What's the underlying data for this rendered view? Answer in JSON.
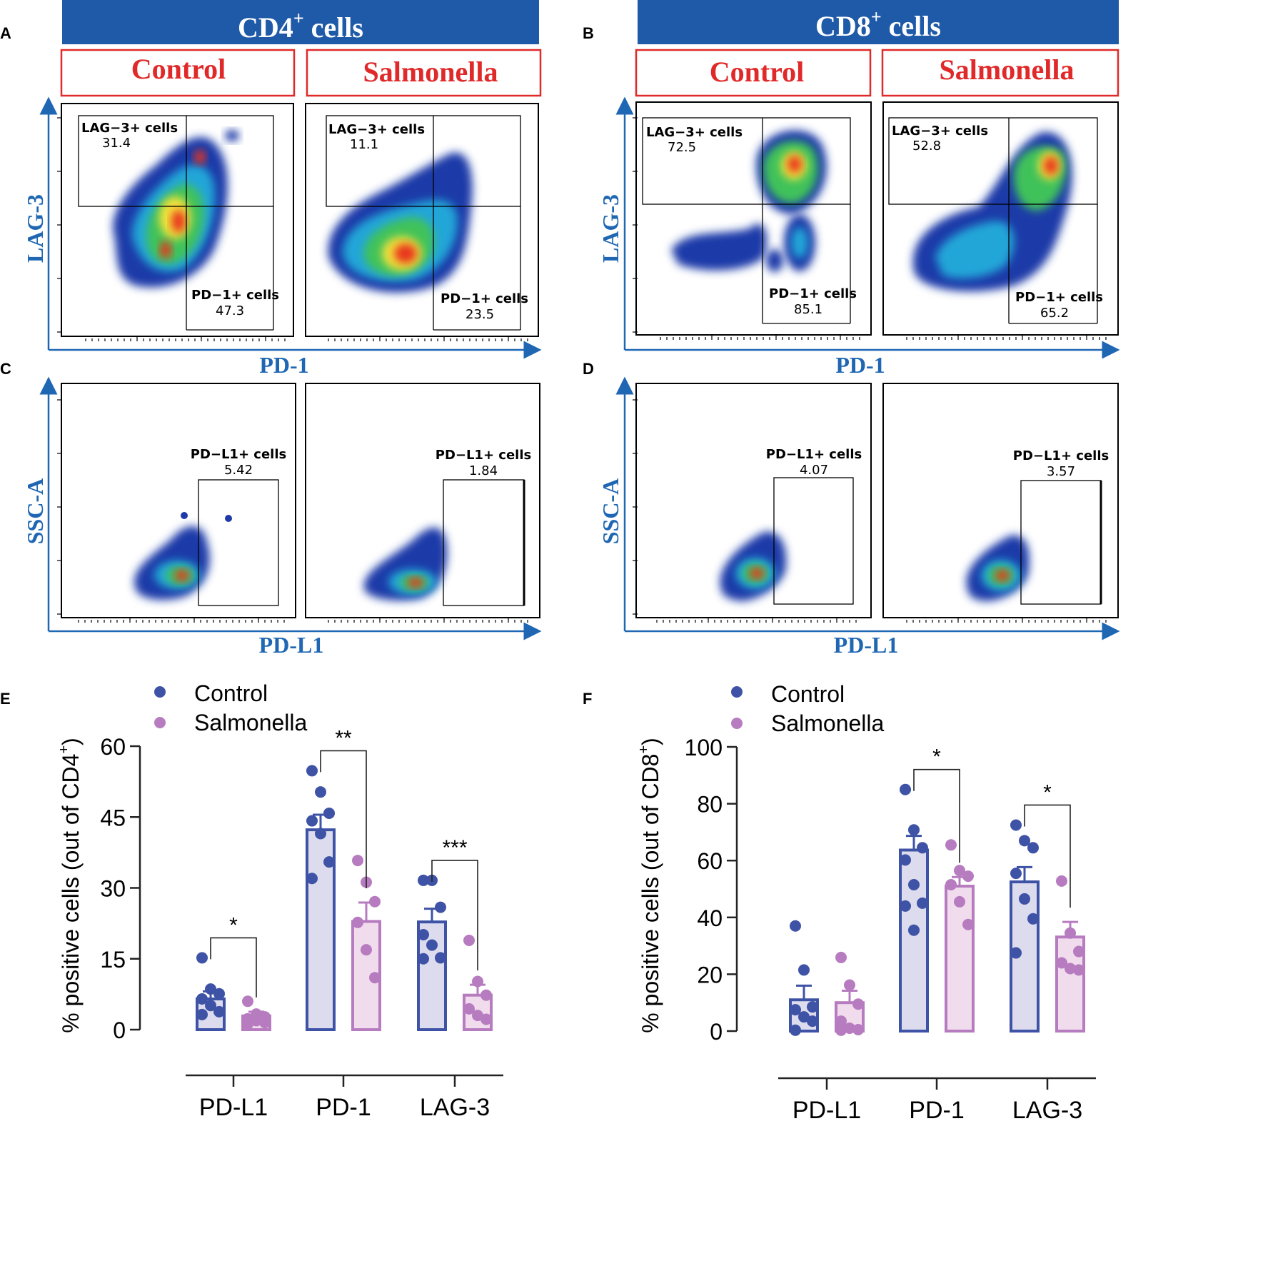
{
  "colors": {
    "banner": "#1f5aa8",
    "control_text": "#e02a2a",
    "axis_blue": "#1f67b3",
    "control_bar": "#3e53a6",
    "control_fill": "#dcdcee",
    "salmonella_bar": "#b77cc0",
    "salmonella_fill": "#f1dcee"
  },
  "panel_letters": {
    "A": "A",
    "B": "B",
    "C": "C",
    "D": "D",
    "E": "E",
    "F": "F"
  },
  "banners": {
    "cd4": {
      "main": "CD4",
      "sup": "+",
      "rest": " cells"
    },
    "cd8": {
      "main": "CD8",
      "sup": "+",
      "rest": " cells"
    }
  },
  "groups": {
    "control": "Control",
    "salmonella": "Salmonella"
  },
  "axes": {
    "lag3": "LAG-3",
    "pd1": "PD-1",
    "ssc": "SSC-A",
    "pdl1": "PD-L1"
  },
  "flow_plots": {
    "A_control": {
      "lag_label": "LAG−3+ cells",
      "lag_val": "31.4",
      "pd_label": "PD−1+ cells",
      "pd_val": "47.3"
    },
    "A_salmonella": {
      "lag_label": "LAG−3+ cells",
      "lag_val": "11.1",
      "pd_label": "PD−1+ cells",
      "pd_val": "23.5"
    },
    "B_control": {
      "lag_label": "LAG−3+ cells",
      "lag_val": "72.5",
      "pd_label": "PD−1+ cells",
      "pd_val": "85.1"
    },
    "B_salmonella": {
      "lag_label": "LAG−3+ cells",
      "lag_val": "52.8",
      "pd_label": "PD−1+ cells",
      "pd_val": "65.2"
    },
    "C_control": {
      "label": "PD−L1+ cells",
      "val": "5.42"
    },
    "C_salmonella": {
      "label": "PD−L1+ cells",
      "val": "1.84"
    },
    "D_control": {
      "label": "PD−L1+ cells",
      "val": "4.07"
    },
    "D_salmonella": {
      "label": "PD−L1+ cells",
      "val": "3.57"
    }
  },
  "chart_data": [
    {
      "type": "bar",
      "panel": "E",
      "ylabel_main": "% positive cells (out of CD4",
      "ylabel_sup": "+",
      "ylabel_end": ")",
      "ylim": [
        0,
        60
      ],
      "yticks": [
        0,
        15,
        30,
        45,
        60
      ],
      "categories": [
        "PD-L1",
        "PD-1",
        "LAG-3"
      ],
      "legend": [
        "Control",
        "Salmonella"
      ],
      "series": [
        {
          "name": "Control",
          "means": [
            6.5,
            42.3,
            22.8
          ],
          "sem": [
            1.6,
            3.2,
            2.8
          ],
          "points": [
            [
              15.2,
              8.6,
              7.6,
              6.5,
              5.1,
              3.8,
              3.2
            ],
            [
              54.8,
              50.3,
              45.8,
              44.2,
              41.5,
              35.5,
              32.0
            ],
            [
              31.6,
              31.6,
              25.9,
              20.1,
              17.9,
              15.2,
              15.0
            ]
          ]
        },
        {
          "name": "Salmonella",
          "means": [
            2.9,
            22.9,
            7.3
          ],
          "sem": [
            0.9,
            4.0,
            2.2
          ],
          "points": [
            [
              6.0,
              3.3,
              2.7,
              2.3,
              1.9,
              1.5,
              1.2
            ],
            [
              35.8,
              31.2,
              27.1,
              22.7,
              16.9,
              11.0
            ],
            [
              18.9,
              10.2,
              7.3,
              4.4,
              3.0,
              2.2
            ]
          ]
        }
      ],
      "significance": [
        "*",
        "**",
        "***"
      ]
    },
    {
      "type": "bar",
      "panel": "F",
      "ylabel_main": "% positive cells (out of CD8",
      "ylabel_sup": "+",
      "ylabel_end": ")",
      "ylim": [
        0,
        100
      ],
      "yticks": [
        0,
        20,
        40,
        60,
        80,
        100
      ],
      "categories": [
        "PD-L1",
        "PD-1",
        "LAG-3"
      ],
      "legend": [
        "Control",
        "Salmonella"
      ],
      "series": [
        {
          "name": "Control",
          "means": [
            11.0,
            63.7,
            52.5
          ],
          "sem": [
            5.0,
            5.0,
            5.2
          ],
          "points": [
            [
              37.0,
              21.5,
              8.5,
              7.5,
              5.0,
              3.5,
              0.3
            ],
            [
              85.0,
              70.8,
              64.5,
              60.2,
              51.5,
              45.0,
              44.0,
              35.5
            ],
            [
              72.5,
              67.0,
              64.5,
              55.5,
              46.5,
              39.5,
              27.5
            ]
          ]
        },
        {
          "name": "Salmonella",
          "means": [
            10.0,
            51.0,
            33.1
          ],
          "sem": [
            4.2,
            3.2,
            5.3
          ],
          "points": [
            [
              25.9,
              16.2,
              9.5,
              3.5,
              1.0,
              0.5,
              0.3
            ],
            [
              65.5,
              56.5,
              54.5,
              51.5,
              45.5,
              37.5
            ],
            [
              52.8,
              34.5,
              28.0,
              24.0,
              22.0,
              21.5
            ]
          ]
        }
      ],
      "significance": [
        "",
        "*",
        "*"
      ]
    }
  ]
}
